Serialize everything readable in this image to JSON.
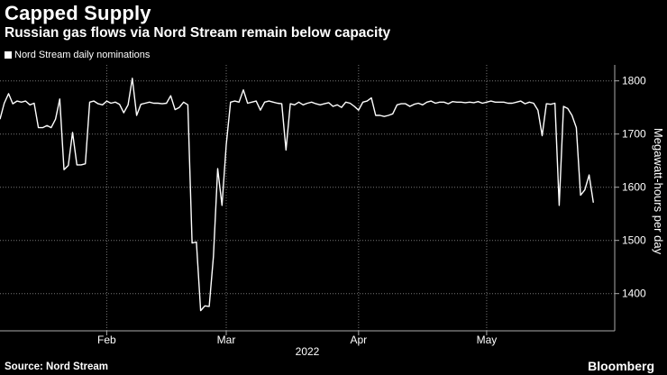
{
  "header": {
    "title": "Capped Supply",
    "subtitle": "Russian gas flows via Nord Stream remain below capacity"
  },
  "footer": {
    "source": "Source: Nord Stream",
    "brand": "Bloomberg"
  },
  "colors": {
    "background": "#000000",
    "line": "#ffffff",
    "grid": "#777777"
  },
  "chart_data": {
    "type": "line",
    "title": "Capped Supply",
    "subtitle": "Russian gas flows via Nord Stream remain below capacity",
    "legend": [
      "Nord Stream daily nominations"
    ],
    "legend_position": "top-left",
    "ylabel": "Megawatt-hours per day",
    "y_axis_side": "right",
    "ylim": [
      1330,
      1830
    ],
    "yticks": [
      1400,
      1500,
      1600,
      1700,
      1800
    ],
    "xlim": [
      "2022-01-07",
      "2022-05-31"
    ],
    "xticks": [
      {
        "date": "2022-02-01",
        "label": "Feb"
      },
      {
        "date": "2022-03-01",
        "label": "Mar"
      },
      {
        "date": "2022-04-01",
        "label": "Apr"
      },
      {
        "date": "2022-05-01",
        "label": "May"
      }
    ],
    "year_label": "2022",
    "grid": "dotted",
    "series": [
      {
        "name": "Nord Stream daily nominations",
        "points": [
          [
            "2022-01-07",
            1728
          ],
          [
            "2022-01-08",
            1758
          ],
          [
            "2022-01-09",
            1776
          ],
          [
            "2022-01-10",
            1757
          ],
          [
            "2022-01-11",
            1762
          ],
          [
            "2022-01-12",
            1760
          ],
          [
            "2022-01-13",
            1762
          ],
          [
            "2022-01-14",
            1755
          ],
          [
            "2022-01-15",
            1758
          ],
          [
            "2022-01-16",
            1712
          ],
          [
            "2022-01-17",
            1712
          ],
          [
            "2022-01-18",
            1716
          ],
          [
            "2022-01-19",
            1712
          ],
          [
            "2022-01-20",
            1728
          ],
          [
            "2022-01-21",
            1766
          ],
          [
            "2022-01-22",
            1633
          ],
          [
            "2022-01-23",
            1641
          ],
          [
            "2022-01-24",
            1703
          ],
          [
            "2022-01-25",
            1642
          ],
          [
            "2022-01-26",
            1642
          ],
          [
            "2022-01-27",
            1644
          ],
          [
            "2022-01-28",
            1760
          ],
          [
            "2022-01-29",
            1762
          ],
          [
            "2022-01-30",
            1757
          ],
          [
            "2022-01-31",
            1755
          ],
          [
            "2022-02-01",
            1762
          ],
          [
            "2022-02-02",
            1758
          ],
          [
            "2022-02-03",
            1760
          ],
          [
            "2022-02-04",
            1756
          ],
          [
            "2022-02-05",
            1740
          ],
          [
            "2022-02-06",
            1755
          ],
          [
            "2022-02-07",
            1805
          ],
          [
            "2022-02-08",
            1735
          ],
          [
            "2022-02-09",
            1756
          ],
          [
            "2022-02-10",
            1758
          ],
          [
            "2022-02-11",
            1760
          ],
          [
            "2022-02-12",
            1758
          ],
          [
            "2022-02-13",
            1758
          ],
          [
            "2022-02-14",
            1757
          ],
          [
            "2022-02-15",
            1758
          ],
          [
            "2022-02-16",
            1772
          ],
          [
            "2022-02-17",
            1746
          ],
          [
            "2022-02-18",
            1750
          ],
          [
            "2022-02-19",
            1760
          ],
          [
            "2022-02-20",
            1755
          ],
          [
            "2022-02-21",
            1495
          ],
          [
            "2022-02-22",
            1497
          ],
          [
            "2022-02-23",
            1368
          ],
          [
            "2022-02-24",
            1377
          ],
          [
            "2022-02-25",
            1376
          ],
          [
            "2022-02-26",
            1470
          ],
          [
            "2022-02-27",
            1635
          ],
          [
            "2022-02-28",
            1566
          ],
          [
            "2022-03-01",
            1680
          ],
          [
            "2022-03-02",
            1760
          ],
          [
            "2022-03-03",
            1762
          ],
          [
            "2022-03-04",
            1760
          ],
          [
            "2022-03-05",
            1783
          ],
          [
            "2022-03-06",
            1758
          ],
          [
            "2022-03-07",
            1760
          ],
          [
            "2022-03-08",
            1762
          ],
          [
            "2022-03-09",
            1745
          ],
          [
            "2022-03-10",
            1760
          ],
          [
            "2022-03-11",
            1762
          ],
          [
            "2022-03-12",
            1760
          ],
          [
            "2022-03-13",
            1758
          ],
          [
            "2022-03-14",
            1757
          ],
          [
            "2022-03-15",
            1670
          ],
          [
            "2022-03-16",
            1757
          ],
          [
            "2022-03-17",
            1755
          ],
          [
            "2022-03-18",
            1760
          ],
          [
            "2022-03-19",
            1755
          ],
          [
            "2022-03-20",
            1758
          ],
          [
            "2022-03-21",
            1760
          ],
          [
            "2022-03-22",
            1757
          ],
          [
            "2022-03-23",
            1755
          ],
          [
            "2022-03-24",
            1757
          ],
          [
            "2022-03-25",
            1759
          ],
          [
            "2022-03-26",
            1752
          ],
          [
            "2022-03-27",
            1755
          ],
          [
            "2022-03-28",
            1750
          ],
          [
            "2022-03-29",
            1760
          ],
          [
            "2022-03-30",
            1758
          ],
          [
            "2022-03-31",
            1752
          ],
          [
            "2022-04-01",
            1745
          ],
          [
            "2022-04-02",
            1760
          ],
          [
            "2022-04-03",
            1762
          ],
          [
            "2022-04-04",
            1768
          ],
          [
            "2022-04-05",
            1735
          ],
          [
            "2022-04-06",
            1735
          ],
          [
            "2022-04-07",
            1733
          ],
          [
            "2022-04-08",
            1735
          ],
          [
            "2022-04-09",
            1738
          ],
          [
            "2022-04-10",
            1755
          ],
          [
            "2022-04-11",
            1757
          ],
          [
            "2022-04-12",
            1757
          ],
          [
            "2022-04-13",
            1752
          ],
          [
            "2022-04-14",
            1756
          ],
          [
            "2022-04-15",
            1758
          ],
          [
            "2022-04-16",
            1755
          ],
          [
            "2022-04-17",
            1760
          ],
          [
            "2022-04-18",
            1762
          ],
          [
            "2022-04-19",
            1758
          ],
          [
            "2022-04-20",
            1760
          ],
          [
            "2022-04-21",
            1760
          ],
          [
            "2022-04-22",
            1757
          ],
          [
            "2022-04-23",
            1761
          ],
          [
            "2022-04-24",
            1760
          ],
          [
            "2022-04-25",
            1760
          ],
          [
            "2022-04-26",
            1759
          ],
          [
            "2022-04-27",
            1760
          ],
          [
            "2022-04-28",
            1759
          ],
          [
            "2022-04-29",
            1761
          ],
          [
            "2022-04-30",
            1758
          ],
          [
            "2022-05-01",
            1760
          ],
          [
            "2022-05-02",
            1762
          ],
          [
            "2022-05-03",
            1760
          ],
          [
            "2022-05-04",
            1760
          ],
          [
            "2022-05-05",
            1760
          ],
          [
            "2022-05-06",
            1758
          ],
          [
            "2022-05-07",
            1758
          ],
          [
            "2022-05-08",
            1760
          ],
          [
            "2022-05-09",
            1762
          ],
          [
            "2022-05-10",
            1757
          ],
          [
            "2022-05-11",
            1760
          ],
          [
            "2022-05-12",
            1758
          ],
          [
            "2022-05-13",
            1745
          ],
          [
            "2022-05-14",
            1697
          ],
          [
            "2022-05-15",
            1757
          ],
          [
            "2022-05-16",
            1756
          ],
          [
            "2022-05-17",
            1758
          ],
          [
            "2022-05-18",
            1566
          ],
          [
            "2022-05-19",
            1752
          ],
          [
            "2022-05-20",
            1748
          ],
          [
            "2022-05-21",
            1735
          ],
          [
            "2022-05-22",
            1712
          ],
          [
            "2022-05-23",
            1585
          ],
          [
            "2022-05-24",
            1595
          ],
          [
            "2022-05-25",
            1623
          ],
          [
            "2022-05-26",
            1571
          ]
        ]
      }
    ]
  }
}
